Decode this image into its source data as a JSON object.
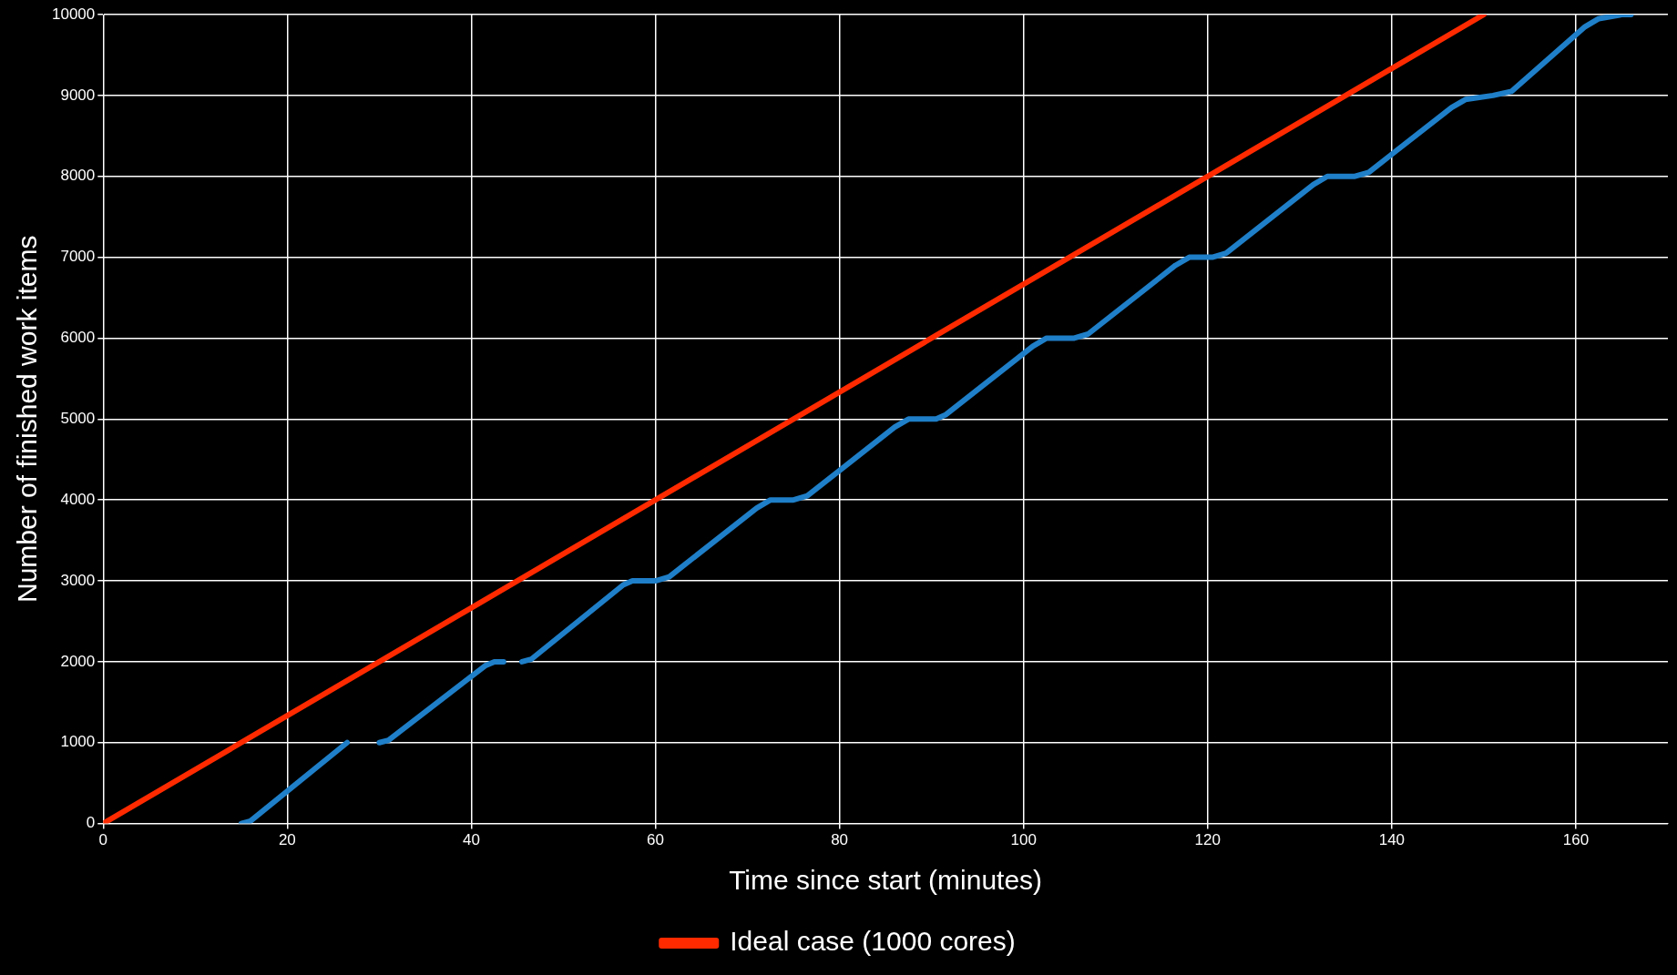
{
  "chart_data": {
    "type": "line",
    "xlabel": "Time since start (minutes)",
    "ylabel": "Number of finished work items",
    "xlim": [
      0,
      170
    ],
    "xticks": [
      0,
      20,
      40,
      60,
      80,
      100,
      120,
      140,
      160
    ],
    "ylim": [
      0,
      10000
    ],
    "yticks": [
      0,
      1000,
      2000,
      3000,
      4000,
      5000,
      6000,
      7000,
      8000,
      9000,
      10000
    ],
    "grid": true,
    "legend": "bottom",
    "marker": "none",
    "line_style": "solid",
    "series": [
      {
        "color": "#1f7fc8",
        "x": [
          15,
          16,
          26.5,
          28,
          30,
          31,
          41.5,
          42.5,
          43.5,
          44.5,
          45.5,
          46.5,
          56.5,
          57.5,
          60,
          61.5,
          71,
          72.5,
          75,
          76.5,
          86,
          87.5,
          90.5,
          91.5,
          101,
          102.5,
          105.5,
          107,
          116.5,
          118,
          120.5,
          122,
          131.5,
          133,
          136,
          137.5,
          146.5,
          148,
          151,
          153,
          161,
          162.5,
          165,
          166
        ],
        "values": [
          0,
          30,
          1000,
          null,
          1000,
          1030,
          1950,
          2000,
          2000,
          null,
          2000,
          2030,
          2950,
          3000,
          3000,
          3050,
          3900,
          4000,
          4000,
          4050,
          4900,
          5000,
          5000,
          5050,
          5900,
          6000,
          6000,
          6050,
          6900,
          7000,
          7000,
          7050,
          7900,
          8000,
          8000,
          8050,
          8850,
          8950,
          9000,
          9050,
          9850,
          9950,
          10000,
          10000
        ]
      },
      {
        "name": "Ideal case (1000 cores)",
        "color": "#ff2a00",
        "x": [
          0,
          150
        ],
        "values": [
          0,
          10000
        ]
      }
    ]
  }
}
